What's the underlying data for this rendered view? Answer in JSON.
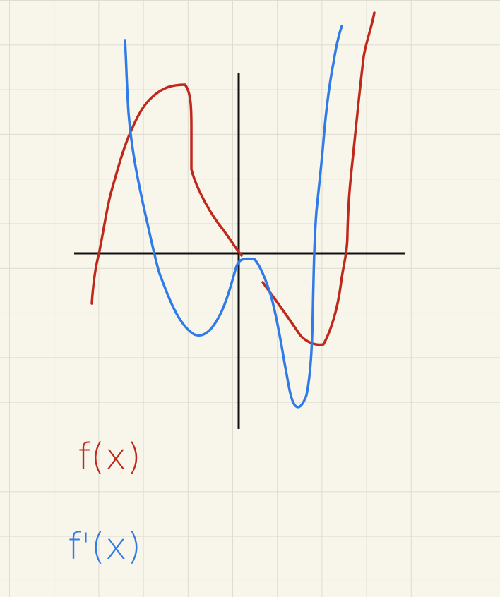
{
  "labels": [
    "f(x)",
    "f'(x)"
  ]
}
